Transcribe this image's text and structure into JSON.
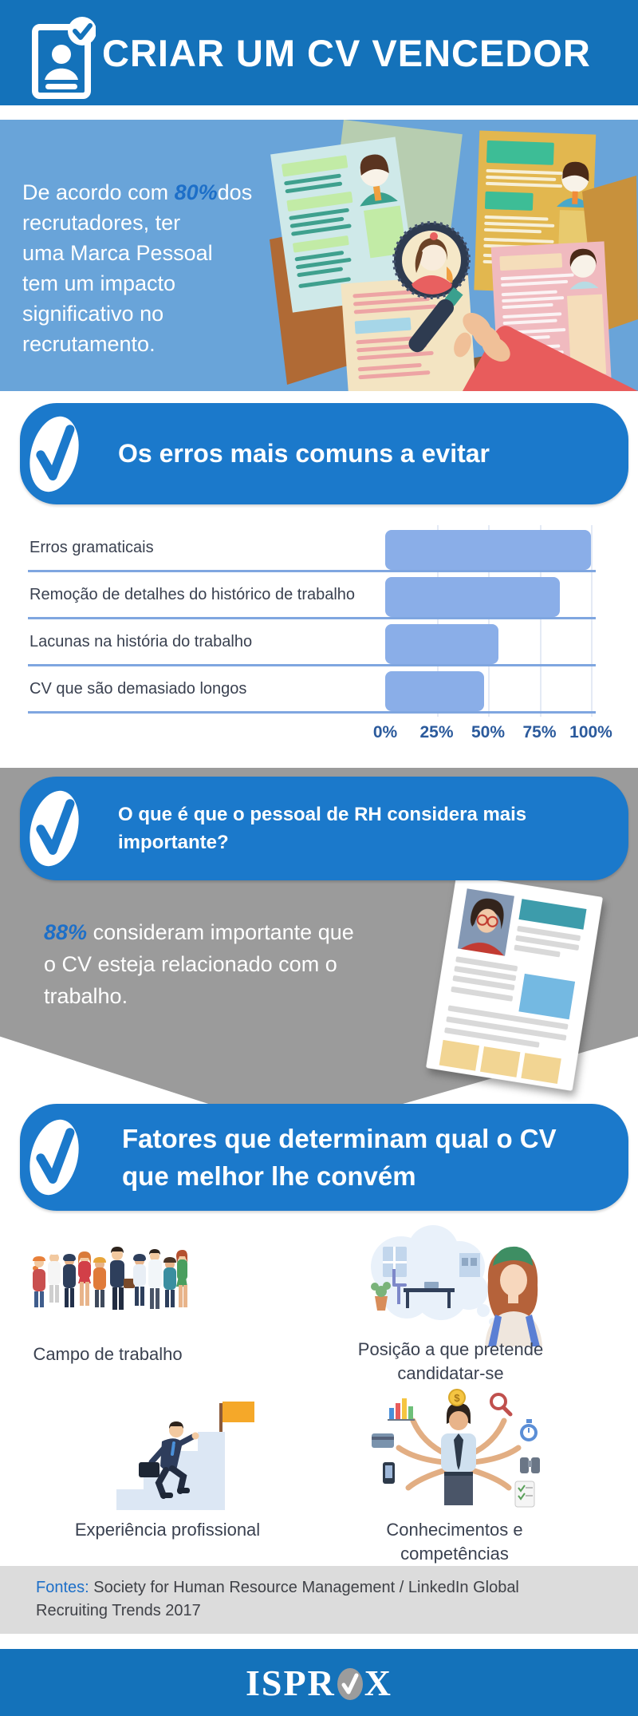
{
  "colors": {
    "header_blue": "#1472ba",
    "banner_blue": "#1b79cb",
    "intro_blue": "#69a4d9",
    "accent_blue": "#1d6fc8",
    "gray_section": "#9b9b9b",
    "bar_fill": "#8aaee8",
    "row_line": "#7fa6e0",
    "text_navy": "#3a4150",
    "tick_blue": "#2b5a9c",
    "sources_gray": "#dcdcdc"
  },
  "header": {
    "title": "CRIAR UM CV VENCEDOR",
    "icon": "cv-document-check-icon"
  },
  "intro": {
    "prefix": "De acordo com",
    "stat": "80%",
    "suffix": "dos recrutadores, ter\numa Marca Pessoal\ntem um impacto\nsignificativo no\nrecrutamento."
  },
  "sections": {
    "errors": {
      "title": "Os erros mais comuns a evitar"
    },
    "rh": {
      "title": "O que é que o pessoal de RH considera mais\nimportante?",
      "stat": "88%",
      "text": "consideram importante que\no CV esteja relacionado com o\ntrabalho."
    },
    "factors": {
      "title": "Fatores que determinam qual o CV\nque melhor lhe convém",
      "items": [
        {
          "label": "Campo de trabalho",
          "illustration": "workers-crowd-illustration"
        },
        {
          "label": "Posição a que pretende\ncandidatar-se",
          "illustration": "job-position-illustration"
        },
        {
          "label": "Experiência profissional",
          "illustration": "career-stairs-illustration"
        },
        {
          "label": "Conhecimentos e competências",
          "illustration": "multitasking-illustration"
        }
      ]
    }
  },
  "chart_data": {
    "type": "bar",
    "orientation": "horizontal",
    "title": "Os erros mais comuns a evitar",
    "categories": [
      "Erros gramaticais",
      "Remoção de detalhes do histórico de trabalho",
      "Lacunas na história do trabalho",
      "CV que são demasiado longos"
    ],
    "values": [
      100,
      85,
      55,
      48
    ],
    "x_ticks": [
      "0%",
      "25%",
      "50%",
      "75%",
      "100%"
    ],
    "xlim": [
      0,
      100
    ],
    "grid": true,
    "bar_color": "#8aaee8"
  },
  "footer": {
    "sources_label": "Fontes:",
    "sources_text": "Society for Human Resource Management / LinkedIn Global\nRecruiting Trends 2017",
    "brand": "ISPROX",
    "brand_left": "ISPR",
    "brand_right": "X",
    "brand_o_icon": "check-oval-icon"
  }
}
